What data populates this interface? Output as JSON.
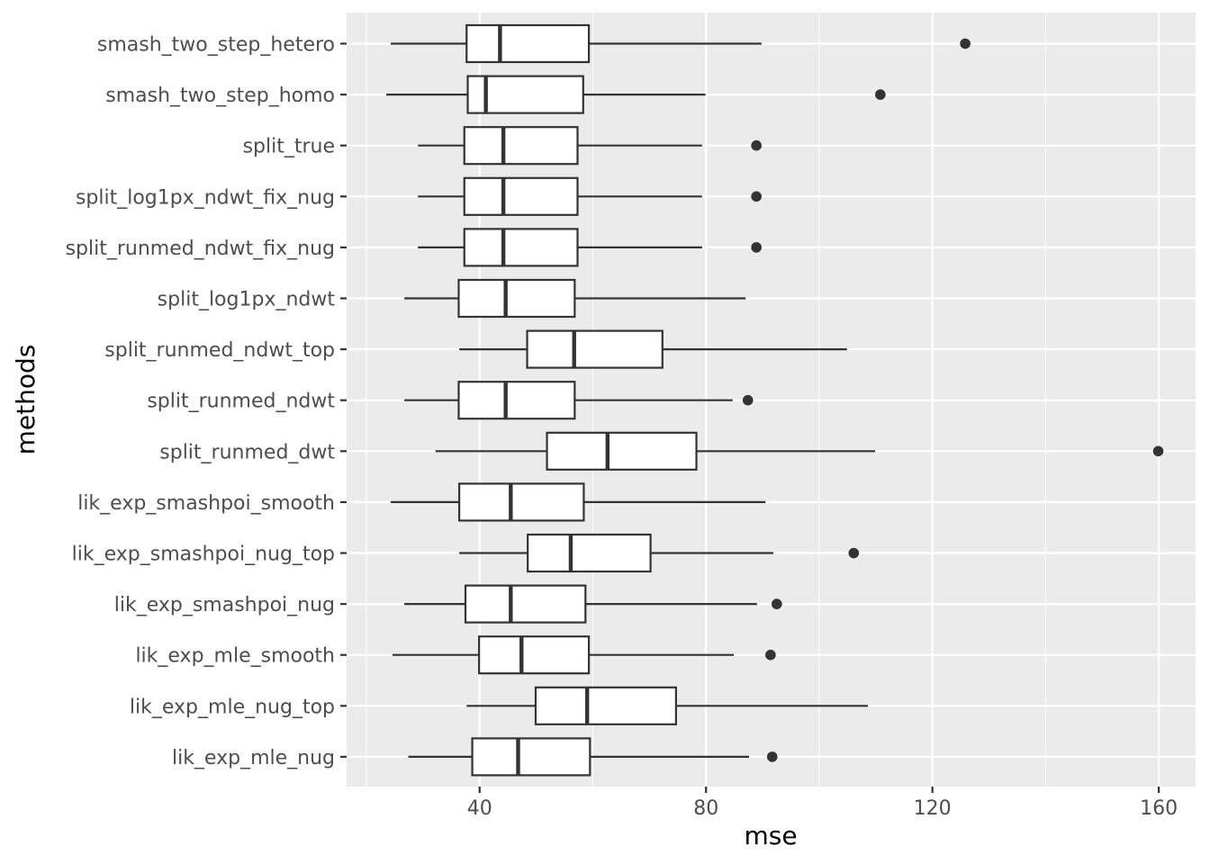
{
  "chart_data": {
    "type": "boxplot",
    "orientation": "horizontal",
    "title": "",
    "xlabel": "mse",
    "ylabel": "methods",
    "xlim": [
      16.5,
      166.5
    ],
    "x_ticks": [
      40,
      80,
      120,
      160
    ],
    "x_tick_labels": [
      "40",
      "80",
      "120",
      "160"
    ],
    "grid": true,
    "background": "#ebebeb",
    "grid_color": "#ffffff",
    "box_fill": "#ffffff",
    "line_color": "#333333",
    "categories": [
      "smash_two_step_hetero",
      "smash_two_step_homo",
      "split_true",
      "split_log1px_ndwt_fix_nug",
      "split_runmed_ndwt_fix_nug",
      "split_log1px_ndwt",
      "split_runmed_ndwt_top",
      "split_runmed_ndwt",
      "split_runmed_dwt",
      "lik_exp_smashpoi_smooth",
      "lik_exp_smashpoi_nug_top",
      "lik_exp_smashpoi_nug",
      "lik_exp_mle_smooth",
      "lik_exp_mle_nug_top",
      "lik_exp_mle_nug"
    ],
    "boxes": [
      {
        "name": "smash_two_step_hetero",
        "whisker_low": 24.3,
        "q1": 37.7,
        "median": 43.6,
        "q3": 59.3,
        "whisker_high": 89.8,
        "outliers": [
          125.8
        ]
      },
      {
        "name": "smash_two_step_homo",
        "whisker_low": 23.5,
        "q1": 37.9,
        "median": 41.1,
        "q3": 58.3,
        "whisker_high": 79.9,
        "outliers": [
          110.8
        ]
      },
      {
        "name": "split_true",
        "whisker_low": 29.1,
        "q1": 37.3,
        "median": 44.2,
        "q3": 57.3,
        "whisker_high": 79.3,
        "outliers": [
          88.9
        ]
      },
      {
        "name": "split_log1px_ndwt_fix_nug",
        "whisker_low": 29.1,
        "q1": 37.3,
        "median": 44.2,
        "q3": 57.3,
        "whisker_high": 79.3,
        "outliers": [
          88.9
        ]
      },
      {
        "name": "split_runmed_ndwt_fix_nug",
        "whisker_low": 29.1,
        "q1": 37.3,
        "median": 44.2,
        "q3": 57.3,
        "whisker_high": 79.3,
        "outliers": [
          88.9
        ]
      },
      {
        "name": "split_log1px_ndwt",
        "whisker_low": 26.7,
        "q1": 36.3,
        "median": 44.6,
        "q3": 56.8,
        "whisker_high": 87.0,
        "outliers": []
      },
      {
        "name": "split_runmed_ndwt_top",
        "whisker_low": 36.4,
        "q1": 48.4,
        "median": 56.7,
        "q3": 72.3,
        "whisker_high": 104.9,
        "outliers": []
      },
      {
        "name": "split_runmed_ndwt",
        "whisker_low": 26.7,
        "q1": 36.3,
        "median": 44.6,
        "q3": 56.8,
        "whisker_high": 84.7,
        "outliers": [
          87.4
        ]
      },
      {
        "name": "split_runmed_dwt",
        "whisker_low": 32.2,
        "q1": 51.9,
        "median": 62.6,
        "q3": 78.3,
        "whisker_high": 109.9,
        "outliers": [
          159.9
        ]
      },
      {
        "name": "lik_exp_smashpoi_smooth",
        "whisker_low": 24.3,
        "q1": 36.4,
        "median": 45.5,
        "q3": 58.4,
        "whisker_high": 90.5,
        "outliers": []
      },
      {
        "name": "lik_exp_smashpoi_nug_top",
        "whisker_low": 36.4,
        "q1": 48.5,
        "median": 56.1,
        "q3": 70.2,
        "whisker_high": 91.9,
        "outliers": [
          106.1
        ]
      },
      {
        "name": "lik_exp_smashpoi_nug",
        "whisker_low": 26.7,
        "q1": 37.5,
        "median": 45.5,
        "q3": 58.7,
        "whisker_high": 89.0,
        "outliers": [
          92.5
        ]
      },
      {
        "name": "lik_exp_mle_smooth",
        "whisker_low": 24.6,
        "q1": 39.9,
        "median": 47.4,
        "q3": 59.3,
        "whisker_high": 84.9,
        "outliers": [
          91.4
        ]
      },
      {
        "name": "lik_exp_mle_nug_top",
        "whisker_low": 37.7,
        "q1": 49.9,
        "median": 59.0,
        "q3": 74.7,
        "whisker_high": 108.6,
        "outliers": []
      },
      {
        "name": "lik_exp_mle_nug",
        "whisker_low": 27.4,
        "q1": 38.7,
        "median": 46.8,
        "q3": 59.5,
        "whisker_high": 87.6,
        "outliers": [
          91.7
        ]
      }
    ]
  }
}
